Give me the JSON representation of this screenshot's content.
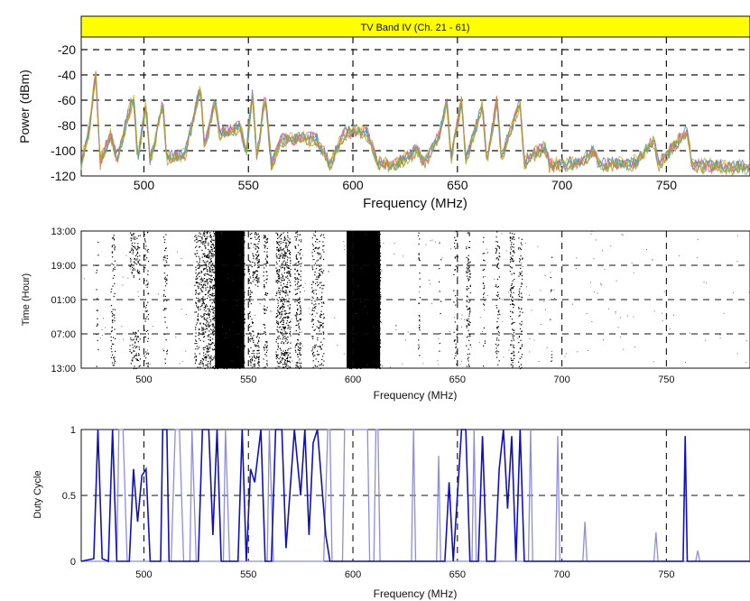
{
  "chart_data": [
    {
      "type": "line",
      "panel": "power",
      "banner": "TV Band IV (Ch. 21 - 61)",
      "banner_color": "#ffff00",
      "xlabel": "Frequency (MHz)",
      "ylabel": "Power (dBm)",
      "xlim": [
        470,
        790
      ],
      "ylim": [
        -120,
        -10
      ],
      "xticks": [
        500,
        550,
        600,
        650,
        700,
        750
      ],
      "yticks": [
        -20,
        -40,
        -60,
        -80,
        -100,
        -120
      ],
      "grid": true,
      "colors": [
        "#d4b52a",
        "#7a6fd0",
        "#e05a9a",
        "#3aa0b0",
        "#8ac040",
        "#c78a30"
      ],
      "series": [
        {
          "values": [
            {
              "x": 470,
              "y": -110
            },
            {
              "x": 474,
              "y": -80
            },
            {
              "x": 477,
              "y": -35
            },
            {
              "x": 479,
              "y": -108
            },
            {
              "x": 484,
              "y": -86
            },
            {
              "x": 487,
              "y": -106
            },
            {
              "x": 495,
              "y": -55
            },
            {
              "x": 497,
              "y": -105
            },
            {
              "x": 501,
              "y": -62
            },
            {
              "x": 503,
              "y": -108
            },
            {
              "x": 509,
              "y": -60
            },
            {
              "x": 511,
              "y": -105
            },
            {
              "x": 520,
              "y": -100
            },
            {
              "x": 527,
              "y": -48
            },
            {
              "x": 529,
              "y": -98
            },
            {
              "x": 534,
              "y": -58
            },
            {
              "x": 536,
              "y": -85
            },
            {
              "x": 546,
              "y": -80
            },
            {
              "x": 549,
              "y": -100
            },
            {
              "x": 552,
              "y": -52
            },
            {
              "x": 554,
              "y": -105
            },
            {
              "x": 558,
              "y": -55
            },
            {
              "x": 561,
              "y": -110
            },
            {
              "x": 566,
              "y": -90
            },
            {
              "x": 570,
              "y": -90
            },
            {
              "x": 577,
              "y": -88
            },
            {
              "x": 583,
              "y": -90
            },
            {
              "x": 589,
              "y": -110
            },
            {
              "x": 596,
              "y": -85
            },
            {
              "x": 601,
              "y": -82
            },
            {
              "x": 607,
              "y": -85
            },
            {
              "x": 612,
              "y": -108
            },
            {
              "x": 620,
              "y": -110
            },
            {
              "x": 631,
              "y": -98
            },
            {
              "x": 634,
              "y": -108
            },
            {
              "x": 641,
              "y": -88
            },
            {
              "x": 645,
              "y": -60
            },
            {
              "x": 647,
              "y": -105
            },
            {
              "x": 652,
              "y": -58
            },
            {
              "x": 654,
              "y": -107
            },
            {
              "x": 662,
              "y": -62
            },
            {
              "x": 664,
              "y": -108
            },
            {
              "x": 669,
              "y": -58
            },
            {
              "x": 671,
              "y": -105
            },
            {
              "x": 680,
              "y": -60
            },
            {
              "x": 682,
              "y": -108
            },
            {
              "x": 692,
              "y": -95
            },
            {
              "x": 694,
              "y": -110
            },
            {
              "x": 710,
              "y": -108
            },
            {
              "x": 715,
              "y": -98
            },
            {
              "x": 718,
              "y": -110
            },
            {
              "x": 735,
              "y": -108
            },
            {
              "x": 744,
              "y": -90
            },
            {
              "x": 746,
              "y": -110
            },
            {
              "x": 760,
              "y": -82
            },
            {
              "x": 762,
              "y": -110
            },
            {
              "x": 790,
              "y": -112
            }
          ]
        }
      ]
    },
    {
      "type": "heatmap",
      "panel": "spectrogram",
      "xlabel": "Frequency (MHz)",
      "ylabel": "Time (Hour)",
      "xlim": [
        470,
        790
      ],
      "xticks": [
        500,
        550,
        600,
        650,
        700,
        750
      ],
      "ytick_labels": [
        "13:00",
        "19:00",
        "01:00",
        "07:00",
        "13:00"
      ],
      "grid": true,
      "occupied_bands": [
        {
          "from": 477,
          "to": 478,
          "density": 0.5
        },
        {
          "from": 484,
          "to": 486,
          "density": 0.6
        },
        {
          "from": 493,
          "to": 498,
          "density": 0.75,
          "gap": [
            0.35,
            0.72
          ]
        },
        {
          "from": 500,
          "to": 502,
          "density": 0.6
        },
        {
          "from": 509,
          "to": 511,
          "density": 0.5
        },
        {
          "from": 524,
          "to": 528,
          "density": 0.7
        },
        {
          "from": 528,
          "to": 534,
          "density": 0.9
        },
        {
          "from": 534,
          "to": 548,
          "density": 1.0
        },
        {
          "from": 550,
          "to": 552,
          "density": 0.6
        },
        {
          "from": 552,
          "to": 555,
          "density": 0.8,
          "gap": [
            0.4,
            0.72
          ]
        },
        {
          "from": 557,
          "to": 559,
          "density": 0.7
        },
        {
          "from": 563,
          "to": 570,
          "density": 0.85
        },
        {
          "from": 572,
          "to": 575,
          "density": 0.8
        },
        {
          "from": 580,
          "to": 586,
          "density": 0.6
        },
        {
          "from": 597,
          "to": 613,
          "density": 1.0
        },
        {
          "from": 631,
          "to": 632,
          "density": 0.6
        },
        {
          "from": 641,
          "to": 642,
          "density": 0.4
        },
        {
          "from": 648,
          "to": 650,
          "density": 0.5
        },
        {
          "from": 654,
          "to": 656,
          "density": 0.7
        },
        {
          "from": 662,
          "to": 663,
          "density": 0.5
        },
        {
          "from": 668,
          "to": 670,
          "density": 0.6
        },
        {
          "from": 675,
          "to": 677,
          "density": 0.8
        },
        {
          "from": 679,
          "to": 681,
          "density": 0.6
        },
        {
          "from": 694,
          "to": 695,
          "density": 0.3
        }
      ]
    },
    {
      "type": "line",
      "panel": "duty_cycle",
      "xlabel": "Frequency (MHz)",
      "ylabel": "Duty Cycle",
      "xlim": [
        470,
        790
      ],
      "ylim": [
        0,
        1
      ],
      "xticks": [
        500,
        550,
        600,
        650,
        700,
        750
      ],
      "yticks": [
        0,
        0.5,
        1
      ],
      "grid": true,
      "colors": [
        "#1010c0",
        "#8c8ce6"
      ],
      "series": [
        {
          "values": [
            [
              470,
              0
            ],
            [
              476,
              0.02
            ],
            [
              478,
              1
            ],
            [
              480,
              0.02
            ],
            [
              483,
              0
            ],
            [
              485,
              1
            ],
            [
              487,
              0
            ],
            [
              493,
              0
            ],
            [
              495,
              0.7
            ],
            [
              497,
              0.3
            ],
            [
              499,
              0.65
            ],
            [
              501,
              0.7
            ],
            [
              503,
              0
            ],
            [
              508,
              0
            ],
            [
              509,
              1
            ],
            [
              511,
              1
            ],
            [
              512,
              0
            ],
            [
              526,
              0
            ],
            [
              528,
              1
            ],
            [
              531,
              1
            ],
            [
              533,
              0.2
            ],
            [
              535,
              1
            ],
            [
              537,
              0
            ],
            [
              545,
              0
            ],
            [
              547,
              1
            ],
            [
              549,
              0
            ],
            [
              551,
              0.7
            ],
            [
              553,
              0.6
            ],
            [
              556,
              1
            ],
            [
              558,
              0
            ],
            [
              561,
              0
            ],
            [
              563,
              1
            ],
            [
              566,
              1
            ],
            [
              568,
              0.1
            ],
            [
              572,
              1
            ],
            [
              575,
              0.5
            ],
            [
              577,
              1
            ],
            [
              579,
              0.2
            ],
            [
              581,
              0.9
            ],
            [
              583,
              1
            ],
            [
              585,
              0.6
            ],
            [
              587,
              0.2
            ],
            [
              589,
              0
            ],
            [
              644,
              0
            ],
            [
              646,
              0.6
            ],
            [
              648,
              0
            ],
            [
              652,
              1
            ],
            [
              654,
              1
            ],
            [
              656,
              0
            ],
            [
              660,
              0
            ],
            [
              662,
              0.95
            ],
            [
              664,
              0
            ],
            [
              668,
              0
            ],
            [
              670,
              0.7
            ],
            [
              672,
              1
            ],
            [
              674,
              0.4
            ],
            [
              676,
              0.95
            ],
            [
              678,
              0
            ],
            [
              680,
              1
            ],
            [
              682,
              0
            ],
            [
              758,
              0
            ],
            [
              759,
              0.95
            ],
            [
              760,
              0
            ],
            [
              790,
              0
            ]
          ]
        },
        {
          "values": [
            [
              470,
              0
            ],
            [
              487,
              0
            ],
            [
              488,
              1
            ],
            [
              490,
              1
            ],
            [
              492,
              0
            ],
            [
              513,
              0
            ],
            [
              515,
              1
            ],
            [
              517,
              1
            ],
            [
              519,
              0
            ],
            [
              522,
              0
            ],
            [
              523,
              1
            ],
            [
              525,
              0
            ],
            [
              538,
              0
            ],
            [
              539,
              1
            ],
            [
              541,
              0
            ],
            [
              559,
              0
            ],
            [
              560,
              1
            ],
            [
              562,
              0
            ],
            [
              586,
              0
            ],
            [
              588,
              1
            ],
            [
              589,
              1
            ],
            [
              590,
              0
            ],
            [
              595,
              0
            ],
            [
              596,
              1
            ],
            [
              607,
              1
            ],
            [
              608,
              0
            ],
            [
              610,
              0
            ],
            [
              611,
              1
            ],
            [
              612,
              1
            ],
            [
              613,
              0
            ],
            [
              628,
              0
            ],
            [
              629,
              1
            ],
            [
              630,
              0
            ],
            [
              640,
              0
            ],
            [
              641,
              0.8
            ],
            [
              642,
              0
            ],
            [
              657,
              0
            ],
            [
              658,
              1
            ],
            [
              659,
              0
            ],
            [
              684,
              0
            ],
            [
              685,
              1
            ],
            [
              686,
              0
            ],
            [
              697,
              0
            ],
            [
              698,
              0.95
            ],
            [
              699,
              0
            ],
            [
              710,
              0
            ],
            [
              711,
              0.3
            ],
            [
              712,
              0
            ],
            [
              744,
              0
            ],
            [
              745,
              0.22
            ],
            [
              746,
              0
            ],
            [
              764,
              0
            ],
            [
              765,
              0.08
            ],
            [
              766,
              0
            ],
            [
              790,
              0
            ]
          ]
        }
      ]
    }
  ]
}
